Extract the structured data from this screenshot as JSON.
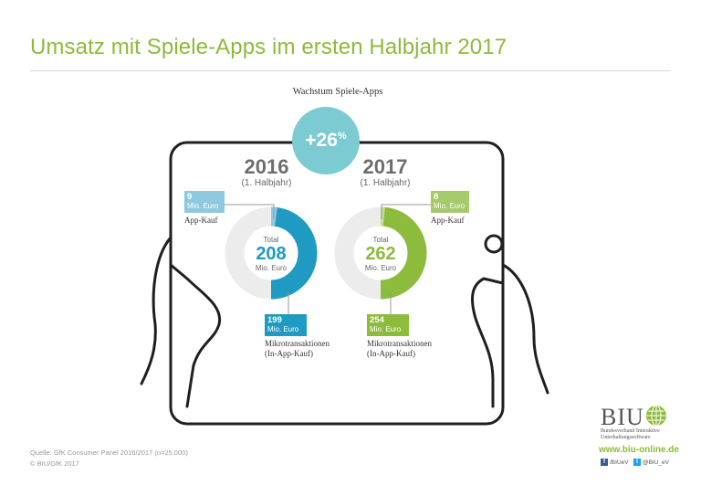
{
  "title": "Umsatz mit Spiele-Apps im ersten Halbjahr 2017",
  "growth": {
    "label": "Wachstum Spiele-Apps",
    "value": "+26",
    "unit": "%"
  },
  "colors": {
    "title_green": "#8dbb3c",
    "blue_2016": "#1f9ac3",
    "blue_2016_light": "#8ec9df",
    "green_2017": "#8dbb3c",
    "green_2017_light": "#c6dc94",
    "donut_bg": "#ececec",
    "growth_circle": "#7ccbd2"
  },
  "chart_data": [
    {
      "type": "pie",
      "year": "2016",
      "period": "(1. Halbjahr)",
      "total_label": "Total",
      "total": 208,
      "total_display": "208",
      "unit": "Mio. Euro",
      "slices": [
        {
          "name": "App-Kauf",
          "value": 9,
          "display": "9"
        },
        {
          "name": "Mikrotransaktionen (In-App-Kauf)",
          "value": 199,
          "display": "199"
        }
      ]
    },
    {
      "type": "pie",
      "year": "2017",
      "period": "(1. Halbjahr)",
      "total_label": "Total",
      "total": 262,
      "total_display": "262",
      "unit": "Mio. Euro",
      "slices": [
        {
          "name": "App-Kauf",
          "value": 8,
          "display": "8"
        },
        {
          "name": "Mikrotransaktionen (In-App-Kauf)",
          "value": 254,
          "display": "254"
        }
      ]
    }
  ],
  "captions": {
    "app_kauf": "App-Kauf",
    "micro_line1": "Mikrotransaktionen",
    "micro_line2": "(In-App-Kauf)"
  },
  "footer": {
    "source": "Quelle: GfK Consumer Panel 2016/2017 (n=25.000)",
    "copyright": "© BIU/GfK 2017"
  },
  "logo": {
    "name": "BIU",
    "subtitle_line1": "Bundesverband Interaktive",
    "subtitle_line2": "Unterhaltungssoftware",
    "url": "www.biu-online.de",
    "facebook": "/BIUeV",
    "twitter": "@BIU_eV"
  }
}
